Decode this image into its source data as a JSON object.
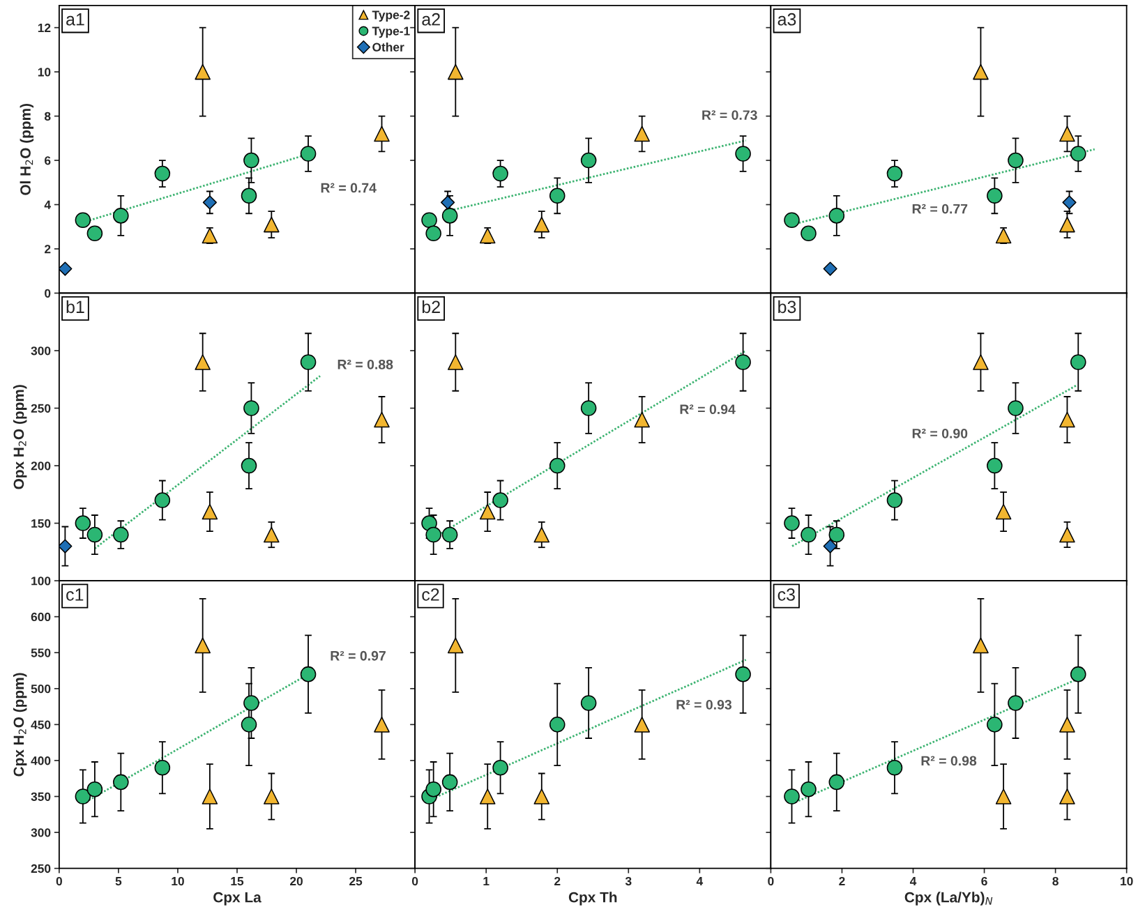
{
  "chart_data": [
    {
      "type": "scatter",
      "ylabel": "Ol H$_{2}$O (ppm)",
      "xlim": [
        0,
        30
      ],
      "xticks": [
        0,
        5,
        10,
        15,
        20,
        25
      ],
      "ylim": [
        0,
        13
      ],
      "yticks": [
        0,
        2,
        4,
        6,
        8,
        10,
        12
      ],
      "tick_labels": "y",
      "legend": "top right",
      "annotations": [
        "a1",
        "R² = 0.74"
      ],
      "series": [
        {
          "name": "Type-2",
          "color": "#f2b630",
          "marker": "triangle",
          "x": [
            12.1,
            12.7,
            17.9,
            27.2
          ],
          "values": [
            10,
            2.6,
            3.1,
            7.2
          ],
          "errors": [
            2,
            0.35,
            0.6,
            0.8
          ]
        },
        {
          "name": "Type-1",
          "color": "#2bb673",
          "marker": "circle",
          "x": [
            2.0,
            3.0,
            5.2,
            8.7,
            16.0,
            16.2,
            21.0
          ],
          "values": [
            3.3,
            2.7,
            3.5,
            5.4,
            4.4,
            6.0,
            6.3
          ],
          "errors": [
            null,
            null,
            0.9,
            0.6,
            0.8,
            1.0,
            0.8
          ]
        },
        {
          "name": "Other",
          "color": "#1f6fb5",
          "marker": "diamond",
          "x": [
            0.5,
            12.7
          ],
          "values": [
            1.1,
            4.1
          ],
          "errors": [
            null,
            0.5
          ]
        },
        {
          "type": "line",
          "color": "#3cb371",
          "line_style": "dotted",
          "x": [
            2.0,
            20.5
          ],
          "values": [
            3.2,
            6.2
          ]
        }
      ]
    },
    {
      "type": "scatter",
      "xlim": [
        0,
        5
      ],
      "xticks": [
        0,
        1,
        2,
        3,
        4
      ],
      "ylim": [
        0,
        13
      ],
      "yticks": [
        0,
        2,
        4,
        6,
        8,
        10,
        12
      ],
      "tick_labels": false,
      "annotations": [
        "a2",
        "R² = 0.73"
      ],
      "series": [
        {
          "color": "#f2b630",
          "marker": "triangle",
          "x": [
            0.57,
            1.02,
            1.78,
            3.19
          ],
          "values": [
            10,
            2.6,
            3.1,
            7.2
          ],
          "errors": [
            2,
            0.35,
            0.6,
            0.8
          ]
        },
        {
          "color": "#2bb673",
          "marker": "circle",
          "x": [
            0.2,
            0.26,
            0.49,
            1.2,
            2.0,
            2.44,
            4.61
          ],
          "values": [
            3.3,
            2.7,
            3.5,
            5.4,
            4.4,
            6.0,
            6.3
          ],
          "errors": [
            null,
            null,
            0.9,
            0.6,
            0.8,
            1.0,
            0.8
          ]
        },
        {
          "color": "#1f6fb5",
          "marker": "diamond",
          "x": [
            0.46
          ],
          "values": [
            4.1
          ],
          "errors": [
            0.5
          ]
        },
        {
          "type": "line",
          "color": "#3cb371",
          "line_style": "dotted",
          "x": [
            0.45,
            4.65
          ],
          "values": [
            3.7,
            6.9
          ]
        }
      ]
    },
    {
      "type": "scatter",
      "xlim": [
        0,
        10
      ],
      "xticks": [
        0,
        2,
        4,
        6,
        8,
        10
      ],
      "ylim": [
        0,
        13
      ],
      "yticks": [
        0,
        2,
        4,
        6,
        8,
        10,
        12
      ],
      "tick_labels": false,
      "annotations": [
        "a3",
        "R² = 0.77"
      ],
      "series": [
        {
          "color": "#f2b630",
          "marker": "triangle",
          "x": [
            5.9,
            6.54,
            8.33,
            8.33
          ],
          "values": [
            10,
            2.6,
            3.1,
            7.2
          ],
          "errors": [
            2,
            0.35,
            0.6,
            0.8
          ]
        },
        {
          "color": "#2bb673",
          "marker": "circle",
          "x": [
            0.59,
            1.06,
            1.85,
            3.48,
            6.29,
            6.88,
            8.64
          ],
          "values": [
            3.3,
            2.7,
            3.5,
            5.4,
            4.4,
            6.0,
            6.3
          ],
          "errors": [
            null,
            null,
            0.9,
            0.6,
            0.8,
            1.0,
            0.8
          ]
        },
        {
          "color": "#1f6fb5",
          "marker": "diamond",
          "x": [
            1.67,
            8.39
          ],
          "values": [
            1.1,
            4.1
          ],
          "errors": [
            null,
            0.5
          ]
        },
        {
          "type": "line",
          "color": "#3cb371",
          "line_style": "dotted",
          "x": [
            0.6,
            9.1
          ],
          "values": [
            3.1,
            6.5
          ]
        }
      ]
    },
    {
      "type": "scatter",
      "ylabel": "Opx H$_{2}$O (ppm)",
      "xlim": [
        0,
        30
      ],
      "xticks": [
        0,
        5,
        10,
        15,
        20,
        25
      ],
      "ylim": [
        100,
        350
      ],
      "yticks": [
        100,
        150,
        200,
        250,
        300
      ],
      "tick_labels": "y",
      "annotations": [
        "b1",
        "R² = 0.88"
      ],
      "series": [
        {
          "color": "#f2b630",
          "marker": "triangle",
          "x": [
            12.1,
            12.7,
            17.9,
            27.2
          ],
          "values": [
            290,
            160,
            140,
            240
          ],
          "errors": [
            25,
            17,
            11,
            20
          ]
        },
        {
          "color": "#2bb673",
          "marker": "circle",
          "x": [
            2.0,
            3.0,
            5.2,
            8.7,
            16.0,
            16.2,
            21.0
          ],
          "values": [
            150,
            140,
            140,
            170,
            200,
            250,
            290
          ],
          "errors": [
            13,
            17,
            12,
            17,
            20,
            22,
            25
          ]
        },
        {
          "color": "#1f6fb5",
          "marker": "diamond",
          "x": [
            0.5
          ],
          "values": [
            130
          ],
          "errors": [
            17
          ]
        },
        {
          "type": "line",
          "color": "#3cb371",
          "line_style": "dotted",
          "x": [
            3.0,
            22.0
          ],
          "values": [
            128,
            278
          ]
        }
      ]
    },
    {
      "type": "scatter",
      "xlim": [
        0,
        5
      ],
      "xticks": [
        0,
        1,
        2,
        3,
        4
      ],
      "ylim": [
        100,
        350
      ],
      "yticks": [
        100,
        150,
        200,
        250,
        300
      ],
      "tick_labels": false,
      "annotations": [
        "b2",
        "R² = 0.94"
      ],
      "series": [
        {
          "color": "#f2b630",
          "marker": "triangle",
          "x": [
            0.57,
            1.02,
            1.78,
            3.19
          ],
          "values": [
            290,
            160,
            140,
            240
          ],
          "errors": [
            25,
            17,
            11,
            20
          ]
        },
        {
          "color": "#2bb673",
          "marker": "circle",
          "x": [
            0.2,
            0.26,
            0.49,
            1.2,
            2.0,
            2.44,
            4.61
          ],
          "values": [
            150,
            140,
            140,
            170,
            200,
            250,
            290
          ],
          "errors": [
            13,
            17,
            12,
            17,
            20,
            22,
            25
          ]
        },
        {
          "type": "line",
          "color": "#3cb371",
          "line_style": "dotted",
          "x": [
            0.2,
            4.65
          ],
          "values": [
            135,
            300
          ]
        }
      ]
    },
    {
      "type": "scatter",
      "xlim": [
        0,
        10
      ],
      "xticks": [
        0,
        2,
        4,
        6,
        8,
        10
      ],
      "ylim": [
        100,
        350
      ],
      "yticks": [
        100,
        150,
        200,
        250,
        300
      ],
      "tick_labels": false,
      "annotations": [
        "b3",
        "R² = 0.90"
      ],
      "series": [
        {
          "color": "#f2b630",
          "marker": "triangle",
          "x": [
            5.9,
            6.54,
            8.33,
            8.33
          ],
          "values": [
            290,
            160,
            140,
            240
          ],
          "errors": [
            25,
            17,
            11,
            20
          ]
        },
        {
          "color": "#2bb673",
          "marker": "circle",
          "x": [
            0.59,
            1.06,
            1.85,
            3.48,
            6.29,
            6.88,
            8.64
          ],
          "values": [
            150,
            140,
            140,
            170,
            200,
            250,
            290
          ],
          "errors": [
            13,
            17,
            12,
            17,
            20,
            22,
            25
          ]
        },
        {
          "color": "#1f6fb5",
          "marker": "diamond",
          "x": [
            1.67
          ],
          "values": [
            130
          ],
          "errors": [
            17
          ]
        },
        {
          "type": "line",
          "color": "#3cb371",
          "line_style": "dotted",
          "x": [
            0.6,
            8.6
          ],
          "values": [
            130,
            270
          ]
        }
      ]
    },
    {
      "type": "scatter",
      "xlabel": "Cpx La",
      "ylabel": "Cpx H$_{2}$O (ppm)",
      "xlim": [
        0,
        30
      ],
      "xticks": [
        0,
        5,
        10,
        15,
        20,
        25
      ],
      "ylim": [
        250,
        650
      ],
      "yticks": [
        250,
        300,
        350,
        400,
        450,
        500,
        550,
        600
      ],
      "annotations": [
        "c1",
        "R² = 0.97"
      ],
      "series": [
        {
          "color": "#f2b630",
          "marker": "triangle",
          "x": [
            12.1,
            12.7,
            17.9,
            27.2
          ],
          "values": [
            560,
            350,
            350,
            450
          ],
          "errors": [
            65,
            45,
            32,
            48
          ]
        },
        {
          "color": "#2bb673",
          "marker": "circle",
          "x": [
            2.0,
            3.0,
            5.2,
            8.7,
            16.0,
            16.2,
            21.0
          ],
          "values": [
            350,
            360,
            370,
            390,
            450,
            480,
            520
          ],
          "errors": [
            37,
            38,
            40,
            36,
            57,
            49,
            54
          ]
        },
        {
          "type": "line",
          "color": "#3cb371",
          "line_style": "dotted",
          "x": [
            2.0,
            21.0
          ],
          "values": [
            340,
            520
          ]
        }
      ]
    },
    {
      "type": "scatter",
      "xlabel": "Cpx Th",
      "xlim": [
        0,
        5
      ],
      "xticks": [
        0,
        1,
        2,
        3,
        4
      ],
      "ylim": [
        250,
        650
      ],
      "yticks": [
        250,
        300,
        350,
        400,
        450,
        500,
        550,
        600
      ],
      "tick_labels": "x",
      "annotations": [
        "c2",
        "R² = 0.93"
      ],
      "series": [
        {
          "color": "#f2b630",
          "marker": "triangle",
          "x": [
            0.57,
            1.02,
            1.78,
            3.19
          ],
          "values": [
            560,
            350,
            350,
            450
          ],
          "errors": [
            65,
            45,
            32,
            48
          ]
        },
        {
          "color": "#2bb673",
          "marker": "circle",
          "x": [
            0.2,
            0.26,
            0.49,
            1.2,
            2.0,
            2.44,
            4.61
          ],
          "values": [
            350,
            360,
            370,
            390,
            450,
            480,
            520
          ],
          "errors": [
            37,
            38,
            40,
            36,
            57,
            49,
            54
          ]
        },
        {
          "type": "line",
          "color": "#3cb371",
          "line_style": "dotted",
          "x": [
            0.2,
            4.65
          ],
          "values": [
            345,
            540
          ]
        }
      ]
    },
    {
      "type": "scatter",
      "xlabel": "Cpx (La/Yb)$_{N}$",
      "xlim": [
        0,
        10
      ],
      "xticks": [
        0,
        2,
        4,
        6,
        8,
        10
      ],
      "ylim": [
        250,
        650
      ],
      "yticks": [
        250,
        300,
        350,
        400,
        450,
        500,
        550,
        600
      ],
      "tick_labels": "x",
      "annotations": [
        "c3",
        "R² = 0.98"
      ],
      "series": [
        {
          "color": "#f2b630",
          "marker": "triangle",
          "x": [
            5.9,
            6.54,
            8.33,
            8.33
          ],
          "values": [
            560,
            350,
            350,
            450
          ],
          "errors": [
            65,
            45,
            32,
            48
          ]
        },
        {
          "color": "#2bb673",
          "marker": "circle",
          "x": [
            0.59,
            1.06,
            1.85,
            3.48,
            6.29,
            6.88,
            8.64
          ],
          "values": [
            350,
            360,
            370,
            390,
            450,
            480,
            520
          ],
          "errors": [
            37,
            38,
            40,
            36,
            57,
            49,
            54
          ]
        },
        {
          "type": "line",
          "color": "#3cb371",
          "line_style": "dotted",
          "x": [
            0.6,
            8.7
          ],
          "values": [
            340,
            515
          ]
        }
      ]
    }
  ]
}
